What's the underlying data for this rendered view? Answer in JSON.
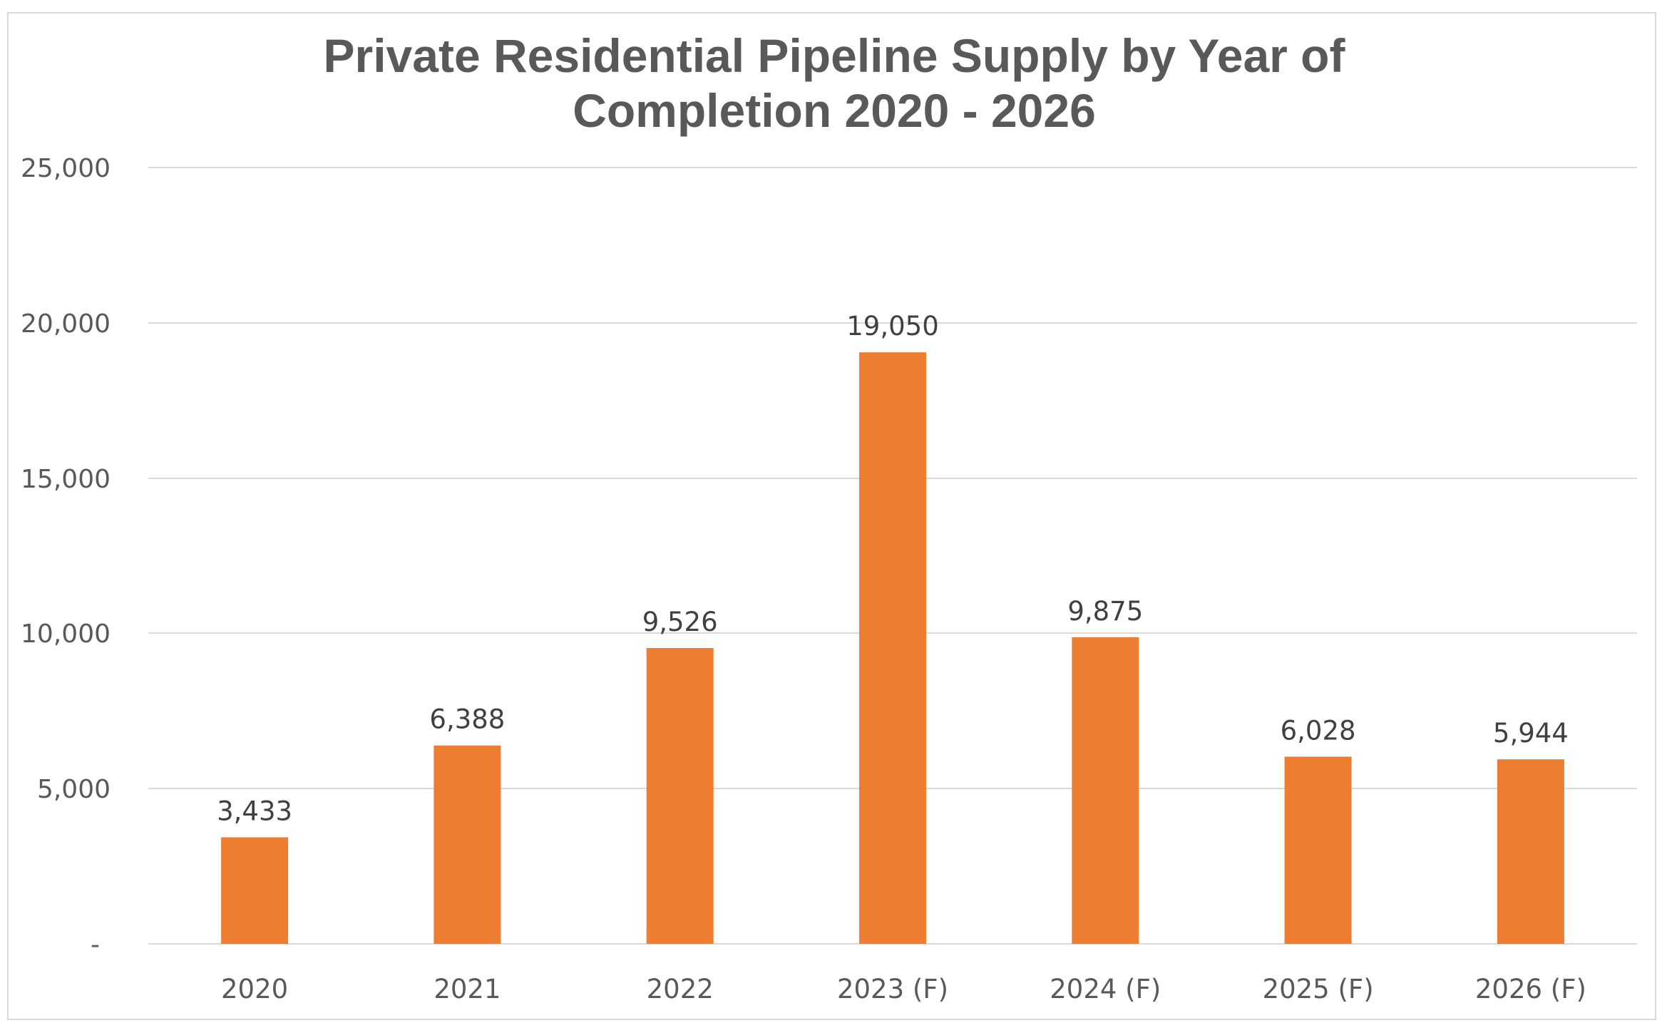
{
  "chart_data": {
    "type": "bar",
    "title_lines": [
      "Private Residential Pipeline Supply by Year of",
      "Completion 2020 - 2026"
    ],
    "title": "Private Residential Pipeline Supply by Year of Completion 2020 - 2026",
    "xlabel": "",
    "ylabel": "",
    "categories": [
      "2020",
      "2021",
      "2022",
      "2023 (F)",
      "2024 (F)",
      "2025 (F)",
      "2026 (F)"
    ],
    "values": [
      3433,
      6388,
      9526,
      19050,
      9875,
      6028,
      5944
    ],
    "data_labels": [
      "3,433",
      "6,388",
      "9,526",
      "19,050",
      "9,875",
      "6,028",
      "5,944"
    ],
    "ylim": [
      0,
      25000
    ],
    "yticks": [
      0,
      5000,
      10000,
      15000,
      20000,
      25000
    ],
    "ytick_labels": [
      "-",
      "5,000",
      "10,000",
      "15,000",
      "20,000",
      "25,000"
    ],
    "grid": true,
    "legend": "none",
    "colors": {
      "bar": "#ED7D31",
      "title": "#595959",
      "axis_text": "#595959",
      "data_label": "#404040",
      "gridline": "#D9D9D9",
      "frame": "#D9D9D9"
    }
  }
}
